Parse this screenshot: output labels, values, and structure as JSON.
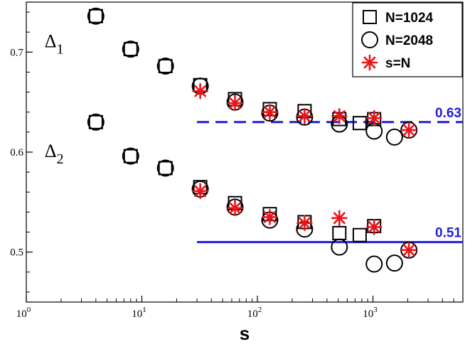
{
  "chart_data": {
    "type": "scatter",
    "xlabel": "s",
    "ylabel": "",
    "xscale": "log",
    "xlim": [
      1,
      6000
    ],
    "ylim": [
      0.45,
      0.75
    ],
    "grid": false,
    "legend_position": "top-right",
    "x_ticks": [
      {
        "value": 1,
        "base": "10",
        "exp": "0"
      },
      {
        "value": 10,
        "base": "10",
        "exp": "1"
      },
      {
        "value": 100,
        "base": "10",
        "exp": "2"
      },
      {
        "value": 1000,
        "base": "10",
        "exp": "3"
      }
    ],
    "y_ticks": [
      {
        "value": 0.5,
        "label": "0.5"
      },
      {
        "value": 0.6,
        "label": "0.6"
      },
      {
        "value": 0.7,
        "label": "0.7"
      }
    ],
    "annotations": [
      {
        "main": "Δ",
        "sub": "1",
        "x": 1.95,
        "y": 0.705
      },
      {
        "main": "Δ",
        "sub": "2",
        "x": 1.95,
        "y": 0.595
      }
    ],
    "reference_lines": [
      {
        "y": 0.63,
        "label": "0.63",
        "style": "dashed",
        "color": "#1f1fd6",
        "x_start": 30
      },
      {
        "y": 0.51,
        "label": "0.51",
        "style": "solid",
        "color": "#1f1fd6",
        "x_start": 30
      }
    ],
    "series": [
      {
        "name": "N=1024",
        "marker": "square",
        "color": "#000000",
        "points": [
          {
            "x": 4,
            "y": 0.736
          },
          {
            "x": 8,
            "y": 0.703
          },
          {
            "x": 16,
            "y": 0.686
          },
          {
            "x": 32,
            "y": 0.667
          },
          {
            "x": 64,
            "y": 0.653
          },
          {
            "x": 128,
            "y": 0.643
          },
          {
            "x": 256,
            "y": 0.641
          },
          {
            "x": 512,
            "y": 0.633
          },
          {
            "x": 768,
            "y": 0.629
          },
          {
            "x": 1024,
            "y": 0.633
          },
          {
            "x": 4,
            "y": 0.63
          },
          {
            "x": 8,
            "y": 0.596
          },
          {
            "x": 16,
            "y": 0.584
          },
          {
            "x": 32,
            "y": 0.565
          },
          {
            "x": 64,
            "y": 0.549
          },
          {
            "x": 128,
            "y": 0.538
          },
          {
            "x": 256,
            "y": 0.53
          },
          {
            "x": 512,
            "y": 0.519
          },
          {
            "x": 768,
            "y": 0.517
          },
          {
            "x": 1024,
            "y": 0.526
          }
        ]
      },
      {
        "name": "N=2048",
        "marker": "circle",
        "color": "#000000",
        "points": [
          {
            "x": 4,
            "y": 0.736
          },
          {
            "x": 8,
            "y": 0.703
          },
          {
            "x": 16,
            "y": 0.686
          },
          {
            "x": 32,
            "y": 0.666
          },
          {
            "x": 64,
            "y": 0.65
          },
          {
            "x": 128,
            "y": 0.639
          },
          {
            "x": 256,
            "y": 0.635
          },
          {
            "x": 512,
            "y": 0.628
          },
          {
            "x": 1024,
            "y": 0.621
          },
          {
            "x": 1536,
            "y": 0.615
          },
          {
            "x": 2048,
            "y": 0.622
          },
          {
            "x": 4,
            "y": 0.63
          },
          {
            "x": 8,
            "y": 0.596
          },
          {
            "x": 16,
            "y": 0.584
          },
          {
            "x": 32,
            "y": 0.563
          },
          {
            "x": 64,
            "y": 0.545
          },
          {
            "x": 128,
            "y": 0.532
          },
          {
            "x": 256,
            "y": 0.523
          },
          {
            "x": 512,
            "y": 0.505
          },
          {
            "x": 1024,
            "y": 0.488
          },
          {
            "x": 1536,
            "y": 0.489
          },
          {
            "x": 2048,
            "y": 0.502
          }
        ]
      },
      {
        "name": "s=N",
        "marker": "asterisk",
        "color": "#e8141a",
        "points": [
          {
            "x": 32,
            "y": 0.661
          },
          {
            "x": 64,
            "y": 0.649
          },
          {
            "x": 128,
            "y": 0.64
          },
          {
            "x": 256,
            "y": 0.636
          },
          {
            "x": 512,
            "y": 0.636
          },
          {
            "x": 1024,
            "y": 0.634
          },
          {
            "x": 2048,
            "y": 0.622
          },
          {
            "x": 32,
            "y": 0.561
          },
          {
            "x": 64,
            "y": 0.544
          },
          {
            "x": 128,
            "y": 0.535
          },
          {
            "x": 256,
            "y": 0.529
          },
          {
            "x": 512,
            "y": 0.534
          },
          {
            "x": 1024,
            "y": 0.525
          },
          {
            "x": 2048,
            "y": 0.502
          }
        ]
      }
    ]
  }
}
